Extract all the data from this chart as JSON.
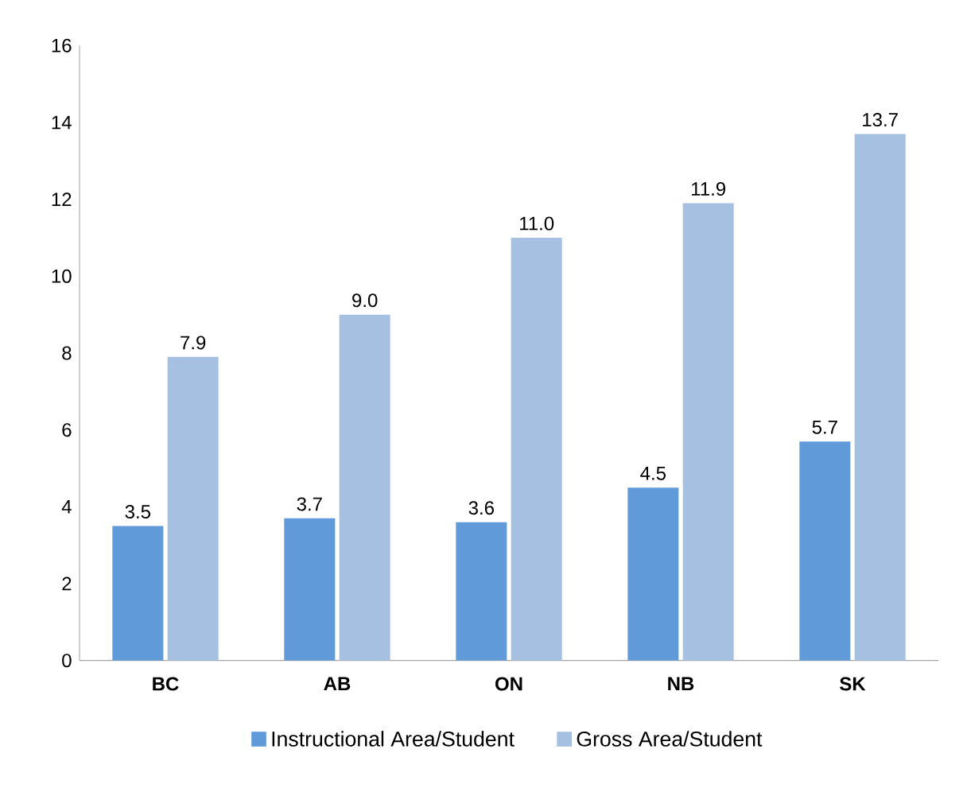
{
  "chart_data": {
    "type": "bar",
    "categories": [
      "BC",
      "AB",
      "ON",
      "NB",
      "SK"
    ],
    "series": [
      {
        "name": "Instructional Area/Student",
        "color": "#609ad9",
        "values": [
          3.5,
          3.7,
          3.6,
          4.5,
          5.7
        ],
        "value_labels": [
          "3.5",
          "3.7",
          "3.6",
          "4.5",
          "5.7"
        ]
      },
      {
        "name": "Gross Area/Student",
        "color": "#a6c0e1",
        "values": [
          7.9,
          9.0,
          11.0,
          11.9,
          13.7
        ],
        "value_labels": [
          "7.9",
          "9.0",
          "11.0",
          "11.9",
          "13.7"
        ]
      }
    ],
    "ylim": [
      0,
      16
    ],
    "yticks": [
      0,
      2,
      4,
      6,
      8,
      10,
      12,
      14,
      16
    ],
    "legend": "bottom",
    "grid": false
  }
}
